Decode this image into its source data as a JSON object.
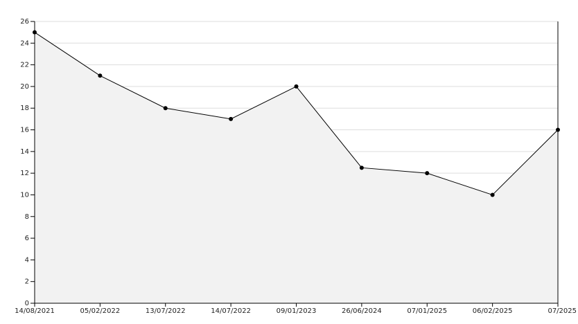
{
  "chart_data": {
    "type": "area",
    "categories": [
      "14/08/2021",
      "05/02/2022",
      "13/07/2022",
      "14/07/2022",
      "09/01/2023",
      "26/06/2024",
      "07/01/2025",
      "06/02/2025",
      "07/2025"
    ],
    "values": [
      25,
      21,
      18,
      17,
      20,
      12.5,
      12,
      10,
      16
    ],
    "color": "#000000",
    "fill": "#f2f2f2",
    "ylim": [
      0,
      26
    ],
    "yticks": [
      0,
      2,
      4,
      6,
      8,
      10,
      12,
      14,
      16,
      18,
      20,
      22,
      24,
      26
    ],
    "grid": true
  }
}
